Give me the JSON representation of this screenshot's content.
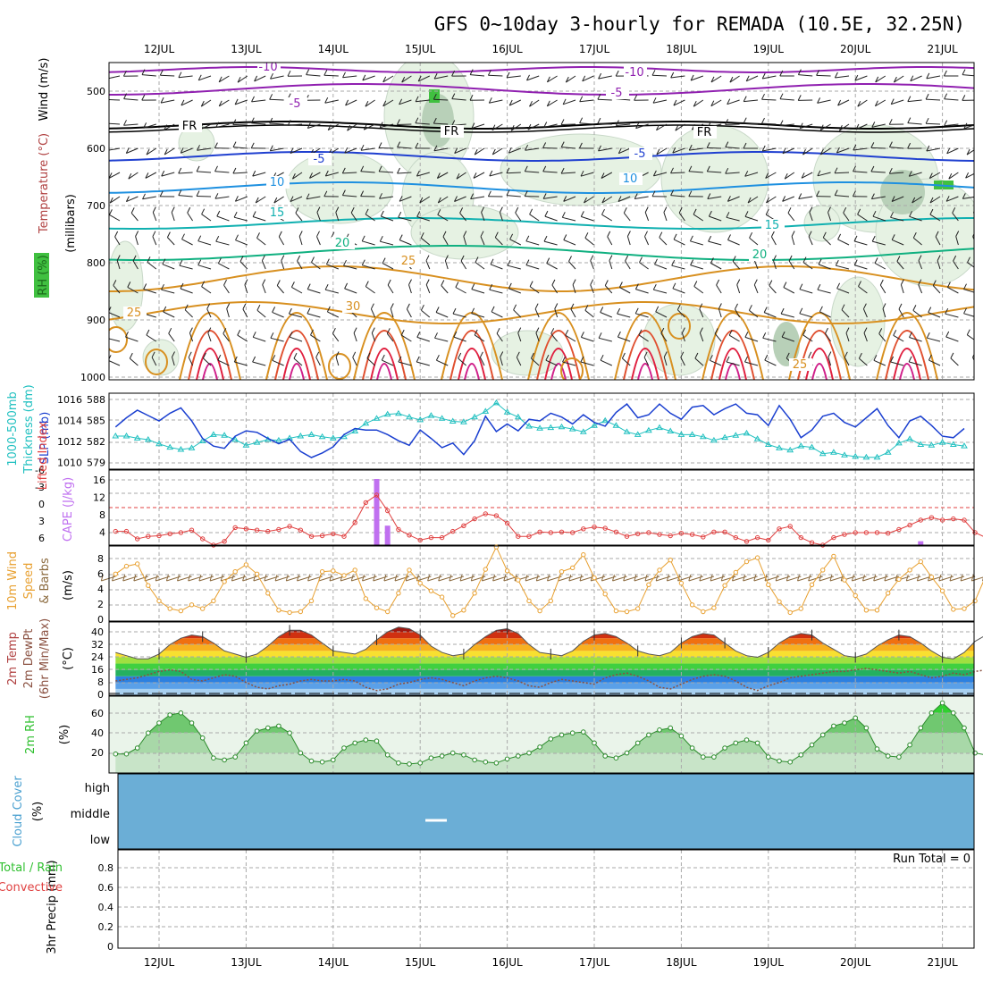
{
  "title": "GFS 0~10day 3-hourly for REMADA (10.5E, 32.25N)",
  "dates": [
    "12JUL",
    "13JUL",
    "14JUL",
    "15JUL",
    "16JUL",
    "17JUL",
    "18JUL",
    "19JUL",
    "20JUL",
    "21JUL"
  ],
  "run_total": "Run Total = 0",
  "colors": {
    "sky": "#6baed6",
    "purple": "#9020b0",
    "fr": "#000000",
    "blue": "#2040d0",
    "lightblue": "#1e90e0",
    "teal": "#10b0b0",
    "green": "#10b080",
    "orange": "#d89020",
    "red": "#e02040",
    "slp": "#1a3fd0",
    "thick": "#20c0c0",
    "li": "#e04040",
    "cape": "#c070f0",
    "wind": "#e8a030",
    "rh": "#30c030"
  },
  "panels": {
    "upper": {
      "ylabel_wind": "Wind (m/s)",
      "ylabel_temp": "Temperature (°C)",
      "ylabel_rh": "RH (%)",
      "ylabel_mb": "(millibars)",
      "ticks": [
        "500",
        "600",
        "700",
        "800",
        "900",
        "1000"
      ],
      "contour_labels": [
        "-10",
        "-10",
        "-5",
        "-5",
        "FR",
        "FR",
        "FR",
        "-5",
        "-5",
        "10",
        "10",
        "15",
        "15",
        "20",
        "20",
        "25",
        "25",
        "30",
        "25"
      ]
    },
    "slp": {
      "ylabel1": "1000-500mb",
      "ylabel2": "Thickness (dm)",
      "ylabel3": "SLP (mb)",
      "left_ticks": [
        "588",
        "585",
        "582",
        "579"
      ],
      "right_ticks": [
        "1016",
        "1014",
        "1012",
        "1010"
      ]
    },
    "li": {
      "ylabel1": "Lifted Index",
      "ylabel2": "CAPE (J/kg)",
      "left_ticks": [
        "-6",
        "-3",
        "0",
        "3",
        "6"
      ],
      "right_ticks": [
        "16",
        "12",
        "8",
        "4"
      ]
    },
    "wind": {
      "ylabel1": "10m Wind",
      "ylabel2": "Speed",
      "ylabel3": "& Barbs",
      "unit": "(m/s)",
      "ticks": [
        "8",
        "6",
        "4",
        "2",
        "0"
      ]
    },
    "temp": {
      "ylabel1": "2m Temp",
      "ylabel2": "2m DewPt",
      "ylabel3": "(6hr Min/Max)",
      "unit": "(°C)",
      "ticks": [
        "40",
        "32",
        "24",
        "16",
        "8",
        "0"
      ]
    },
    "rh": {
      "ylabel1": "2m RH",
      "unit": "(%)",
      "ticks": [
        "60",
        "40",
        "20"
      ]
    },
    "cloud": {
      "ylabel1": "Cloud Cover",
      "unit": "(%)",
      "levels": [
        "high",
        "middle",
        "low"
      ]
    },
    "precip": {
      "ylabel1": "3hr Precip (mm)",
      "ylabel2": "Total / Rain",
      "ylabel3": "Convective",
      "ticks": [
        "0.8",
        "0.6",
        "0.4",
        "0.2",
        "0"
      ]
    }
  },
  "chart_data": [
    {
      "type": "line",
      "panel": "slp",
      "title": "SLP (mb)",
      "x": "3-hourly steps from 11JUL 12Z",
      "ylim": [
        1008.3,
        1016.6
      ],
      "series": [
        {
          "name": "SLP (mb)",
          "values": [
            1013.0,
            1014.2,
            1015.2,
            1014.5,
            1013.8,
            1014.8,
            1015.5,
            1013.8,
            1011.5,
            1010.5,
            1010.2,
            1011.8,
            1012.5,
            1012.3,
            1011.5,
            1010.8,
            1011.4,
            1009.8,
            1009.0,
            1009.6,
            1010.4,
            1012.0,
            1012.8,
            1012.6,
            1012.6,
            1012.0,
            1011.2,
            1010.6,
            1012.6,
            1011.5,
            1010.3,
            1010.9,
            1009.4,
            1011.2,
            1014.4,
            1012.4,
            1013.4,
            1012.5,
            1014.0,
            1013.8,
            1014.8,
            1014.3,
            1013.4,
            1014.6,
            1013.6,
            1013.1,
            1014.9,
            1016.0,
            1014.2,
            1014.6,
            1016.0,
            1014.8,
            1014.0,
            1015.6,
            1015.8,
            1014.6,
            1015.4,
            1016.0,
            1014.8,
            1014.6,
            1013.2,
            1015.8,
            1014.0,
            1011.6,
            1012.6,
            1014.4,
            1014.8,
            1013.6,
            1013.0,
            1014.2,
            1015.4,
            1013.2,
            1011.6,
            1013.8,
            1014.4,
            1013.2,
            1011.8,
            1011.6,
            1012.8
          ]
        },
        {
          "name": "1000-500mb Thickness (dm)",
          "values": [
            582.8,
            582.8,
            582.5,
            582.3,
            581.7,
            581.2,
            580.9,
            581.1,
            582.1,
            583.0,
            582.9,
            582.3,
            581.5,
            581.9,
            582.3,
            582.2,
            582.5,
            582.8,
            583.0,
            582.7,
            582.5,
            582.7,
            583.5,
            584.6,
            585.3,
            585.9,
            586.0,
            585.5,
            585.1,
            585.7,
            585.3,
            584.9,
            584.8,
            585.5,
            586.3,
            587.5,
            586.2,
            585.5,
            584.2,
            583.9,
            584.0,
            584.1,
            583.8,
            583.4,
            584.3,
            585.0,
            584.3,
            583.4,
            583.0,
            583.6,
            584.0,
            583.5,
            583.0,
            583.0,
            582.7,
            582.2,
            582.6,
            582.9,
            583.2,
            582.4,
            581.6,
            581.1,
            580.8,
            581.4,
            581.2,
            580.3,
            580.5,
            580.1,
            579.9,
            579.8,
            579.8,
            580.5,
            581.8,
            582.4,
            581.6,
            581.5,
            581.9,
            581.6,
            581.4
          ]
        }
      ]
    },
    {
      "type": "line",
      "panel": "li",
      "title": "Lifted Index / CAPE",
      "ylim": [
        6,
        -6
      ],
      "series": [
        {
          "name": "Lifted Index",
          "values": [
            3.8,
            3.8,
            5.0,
            4.6,
            4.5,
            4.2,
            4.0,
            3.6,
            5.0,
            6.0,
            5.4,
            3.2,
            3.4,
            3.6,
            3.8,
            3.5,
            3.0,
            3.6,
            4.6,
            4.5,
            4.2,
            4.6,
            2.4,
            -0.8,
            -2.0,
            0.5,
            3.5,
            4.4,
            5.2,
            4.8,
            4.8,
            3.8,
            2.9,
            1.8,
            1.0,
            1.3,
            2.5,
            4.6,
            4.6,
            3.9,
            4.0,
            3.9,
            4.0,
            3.4,
            3.1,
            3.3,
            3.9,
            4.6,
            4.2,
            4.0,
            4.3,
            4.5,
            4.1,
            4.3,
            4.7,
            3.9,
            3.9,
            4.8,
            5.4,
            4.8,
            5.2,
            3.4,
            3.0,
            4.8,
            5.6,
            6.0,
            4.8,
            4.3,
            4.0,
            4.0,
            4.0,
            4.1,
            3.5,
            2.8,
            2.0,
            1.6,
            2.0,
            1.8,
            2.0,
            4.0,
            4.8,
            4.3,
            5.2,
            5.2,
            4.6
          ]
        },
        {
          "name": "CAPE (J/kg)",
          "values": [
            0,
            0,
            0,
            0,
            0,
            0,
            0,
            0,
            0,
            0,
            0,
            0,
            0,
            0,
            0,
            0,
            0,
            0,
            0,
            0,
            0,
            0,
            0,
            0,
            17,
            5,
            0,
            0,
            0,
            0,
            0,
            0,
            0,
            0,
            0,
            0,
            0,
            0,
            0,
            0,
            0,
            0,
            0,
            0,
            0,
            0,
            0,
            0,
            0,
            0,
            0,
            0,
            0,
            0,
            0,
            0,
            0,
            0,
            0,
            0,
            0,
            0,
            0,
            0,
            0,
            0,
            0,
            0,
            0,
            0,
            0,
            0,
            0,
            0,
            1,
            0,
            0,
            0,
            0,
            0
          ]
        }
      ]
    },
    {
      "type": "line",
      "panel": "wind",
      "title": "10m Wind Speed",
      "ylim": [
        0,
        9.5
      ],
      "series": [
        {
          "name": "10m Wind Speed (m/s)",
          "values": [
            6.0,
            7.0,
            7.3,
            4.5,
            2.5,
            1.5,
            1.2,
            2.0,
            1.5,
            2.5,
            5.0,
            6.3,
            7.2,
            6.0,
            3.5,
            1.3,
            1.0,
            1.1,
            2.5,
            6.3,
            6.4,
            5.8,
            6.5,
            2.8,
            1.6,
            1.1,
            3.5,
            6.5,
            4.8,
            3.8,
            3.0,
            0.6,
            1.3,
            3.5,
            6.6,
            9.5,
            6.4,
            5.2,
            2.5,
            1.2,
            2.5,
            6.3,
            6.8,
            8.5,
            5.5,
            3.4,
            1.2,
            1.1,
            1.5,
            4.6,
            6.5,
            7.8,
            4.8,
            2.0,
            1.1,
            1.6,
            4.5,
            6.2,
            7.6,
            8.1,
            4.6,
            2.4,
            1.0,
            1.5,
            4.6,
            6.5,
            8.3,
            5.2,
            3.2,
            1.3,
            1.3,
            3.5,
            5.3,
            6.5,
            7.6,
            5.6,
            3.8,
            1.4,
            1.5,
            2.5,
            5.8,
            8.1,
            3.5,
            1.5,
            1.2,
            1.2
          ]
        }
      ]
    },
    {
      "type": "area",
      "panel": "temp",
      "title": "2m Temp / DewPt",
      "ylim": [
        0,
        44
      ],
      "series": [
        {
          "name": "2m Temp",
          "values": [
            27,
            25,
            23,
            23,
            26,
            32,
            36,
            38,
            37,
            33,
            28,
            26,
            24,
            26,
            31,
            37,
            41,
            41,
            38,
            33,
            28,
            27,
            26,
            29,
            35,
            40,
            43,
            42,
            38,
            31,
            27,
            25,
            26,
            32,
            37,
            41,
            42,
            39,
            32,
            27,
            26,
            25,
            28,
            34,
            38,
            39,
            37,
            33,
            28,
            26,
            25,
            27,
            33,
            37,
            39,
            38,
            33,
            28,
            25,
            24,
            27,
            33,
            37,
            39,
            38,
            33,
            29,
            25,
            24,
            26,
            31,
            35,
            38,
            37,
            33,
            28,
            24,
            23,
            27,
            34,
            38,
            39,
            35,
            29,
            27,
            27,
            29
          ]
        },
        {
          "name": "2m DewPt",
          "values": [
            9,
            10,
            11,
            13,
            15,
            16,
            15,
            10,
            9,
            11,
            13,
            12,
            8,
            5,
            4,
            6,
            7,
            9,
            10,
            9,
            9,
            10,
            9,
            5,
            3,
            4,
            7,
            8,
            10,
            11,
            10,
            8,
            6,
            9,
            11,
            12,
            11,
            9,
            6,
            5,
            8,
            10,
            9,
            8,
            7,
            11,
            13,
            14,
            12,
            9,
            5,
            4,
            7,
            10,
            12,
            13,
            12,
            9,
            5,
            3,
            6,
            8,
            11,
            12,
            13,
            14,
            15,
            15,
            16,
            17,
            16,
            15,
            14,
            15,
            13,
            11,
            12,
            14,
            13,
            15,
            16,
            15,
            14,
            13,
            14,
            12
          ]
        }
      ]
    },
    {
      "type": "area",
      "panel": "rh",
      "title": "2m RH",
      "ylim": [
        0,
        75
      ],
      "series": [
        {
          "name": "2m RH (%)",
          "values": [
            19,
            19,
            25,
            40,
            50,
            58,
            60,
            50,
            35,
            15,
            13,
            16,
            30,
            42,
            45,
            47,
            40,
            20,
            12,
            11,
            13,
            25,
            30,
            33,
            32,
            18,
            10,
            9,
            10,
            15,
            17,
            20,
            18,
            13,
            11,
            10,
            14,
            17,
            20,
            26,
            34,
            38,
            40,
            41,
            30,
            17,
            15,
            20,
            30,
            38,
            43,
            45,
            37,
            25,
            16,
            16,
            25,
            30,
            33,
            30,
            16,
            12,
            11,
            18,
            28,
            38,
            47,
            50,
            55,
            45,
            24,
            17,
            16,
            28,
            45,
            60,
            70,
            60,
            45,
            20,
            18,
            24,
            37,
            45,
            47,
            35
          ]
        }
      ]
    },
    {
      "type": "bar",
      "panel": "cloud",
      "title": "Cloud Cover",
      "categories": [
        "high",
        "middle",
        "low"
      ],
      "values": [
        0,
        2,
        0
      ]
    },
    {
      "type": "bar",
      "panel": "precip",
      "title": "3hr Precip (mm)",
      "ylim": [
        0,
        1
      ],
      "series": [
        {
          "name": "Total / Rain",
          "values": [
            0
          ]
        },
        {
          "name": "Convective",
          "values": [
            0
          ]
        }
      ]
    }
  ]
}
